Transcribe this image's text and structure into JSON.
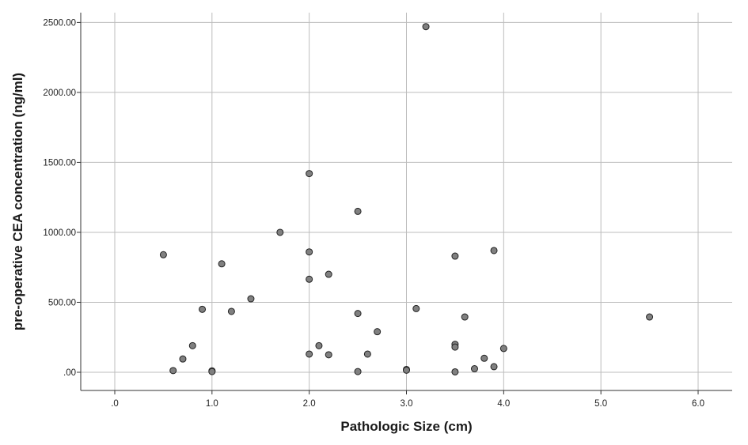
{
  "chart_data": {
    "type": "scatter",
    "xlabel": "Pathologic Size (cm)",
    "ylabel": "pre-operative CEA concentration (ng/ml)",
    "xlim": [
      -0.35,
      6.35
    ],
    "ylim": [
      -130,
      2570
    ],
    "x_ticks": [
      0,
      1,
      2,
      3,
      4,
      5,
      6
    ],
    "x_tick_labels": [
      ".0",
      "1.0",
      "2.0",
      "3.0",
      "4.0",
      "5.0",
      "6.0"
    ],
    "y_ticks": [
      0,
      500,
      1000,
      1500,
      2000,
      2500
    ],
    "y_tick_labels": [
      ".00",
      "500.00",
      "1000.00",
      "1500.00",
      "2000.00",
      "2500.00"
    ],
    "grid": true,
    "marker_color": "#808080",
    "points": [
      {
        "x": 0.5,
        "y": 840
      },
      {
        "x": 0.6,
        "y": 12
      },
      {
        "x": 0.7,
        "y": 95
      },
      {
        "x": 0.8,
        "y": 190
      },
      {
        "x": 0.9,
        "y": 450
      },
      {
        "x": 1.0,
        "y": 10
      },
      {
        "x": 1.0,
        "y": 5
      },
      {
        "x": 1.1,
        "y": 775
      },
      {
        "x": 1.2,
        "y": 435
      },
      {
        "x": 1.4,
        "y": 525
      },
      {
        "x": 1.7,
        "y": 1000
      },
      {
        "x": 2.0,
        "y": 1420
      },
      {
        "x": 2.0,
        "y": 860
      },
      {
        "x": 2.0,
        "y": 665
      },
      {
        "x": 2.0,
        "y": 130
      },
      {
        "x": 2.1,
        "y": 190
      },
      {
        "x": 2.2,
        "y": 700
      },
      {
        "x": 2.2,
        "y": 125
      },
      {
        "x": 2.5,
        "y": 1150
      },
      {
        "x": 2.5,
        "y": 420
      },
      {
        "x": 2.5,
        "y": 5
      },
      {
        "x": 2.6,
        "y": 130
      },
      {
        "x": 2.7,
        "y": 290
      },
      {
        "x": 3.0,
        "y": 20
      },
      {
        "x": 3.0,
        "y": 15
      },
      {
        "x": 3.1,
        "y": 455
      },
      {
        "x": 3.2,
        "y": 2470
      },
      {
        "x": 3.5,
        "y": 830
      },
      {
        "x": 3.5,
        "y": 200
      },
      {
        "x": 3.5,
        "y": 180
      },
      {
        "x": 3.5,
        "y": 3
      },
      {
        "x": 3.6,
        "y": 395
      },
      {
        "x": 3.7,
        "y": 25
      },
      {
        "x": 3.8,
        "y": 100
      },
      {
        "x": 3.9,
        "y": 870
      },
      {
        "x": 3.9,
        "y": 40
      },
      {
        "x": 4.0,
        "y": 170
      },
      {
        "x": 5.5,
        "y": 395
      }
    ]
  }
}
